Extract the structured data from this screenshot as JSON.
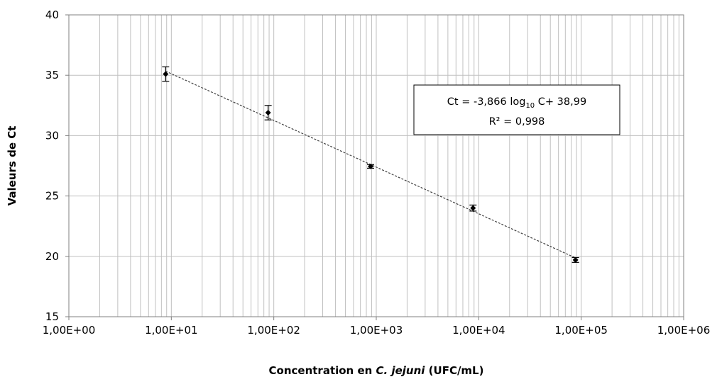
{
  "chart_data": {
    "type": "scatter",
    "x_scale": "log",
    "xlim": [
      1,
      1000000
    ],
    "ylim": [
      15,
      40
    ],
    "y_ticks": [
      15,
      20,
      25,
      30,
      35,
      40
    ],
    "x_ticks": [
      1,
      10,
      100,
      1000,
      10000,
      100000,
      1000000
    ],
    "x_tick_labels": [
      "1,00E+00",
      "1,00E+01",
      "1,00E+02",
      "1,00E+03",
      "1,00E+04",
      "1,00E+05",
      "1,00E+06"
    ],
    "y_tick_labels": [
      "15",
      "20",
      "25",
      "30",
      "35",
      "40"
    ],
    "grid": true,
    "xlabel": {
      "prefix": "Concentration en ",
      "italic": "C. jejuni",
      "suffix": "  (UFC/mL)"
    },
    "ylabel": "Valeurs de Ct",
    "points": [
      {
        "x": 8.8,
        "y": 35.1,
        "err": 0.6
      },
      {
        "x": 88,
        "y": 31.9,
        "err": 0.6
      },
      {
        "x": 880,
        "y": 27.45,
        "err": 0.15
      },
      {
        "x": 8800,
        "y": 24.0,
        "err": 0.25
      },
      {
        "x": 88000,
        "y": 19.7,
        "err": 0.2
      }
    ],
    "trendline": {
      "slope": -3.866,
      "intercept": 38.99,
      "x_range": [
        8.8,
        88000
      ],
      "style": "dashed"
    },
    "annotation": {
      "line1_a": "Ct = -3,866 log",
      "line1_sub": "10",
      "line1_b": " C+ 38,99",
      "line2": "R² = 0,998"
    },
    "colors": {
      "grid": "#c0c0c0",
      "axis": "#808080",
      "marker": "#000000",
      "trendline": "#404040"
    }
  }
}
